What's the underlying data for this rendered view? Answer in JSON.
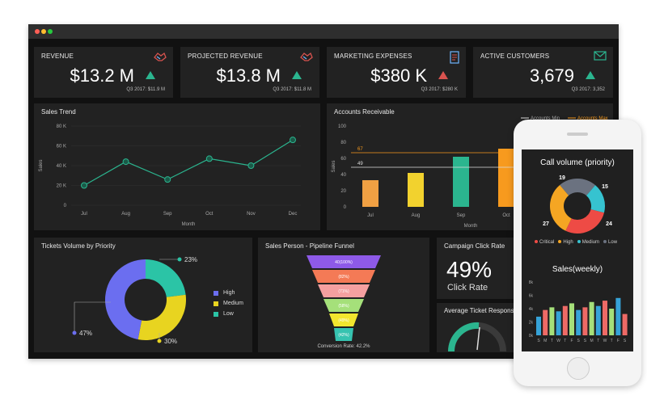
{
  "kpis": [
    {
      "title": "REVENUE",
      "value": "$13.2 M",
      "sub": "Q3 2017: $11.9 M",
      "trend": "up",
      "icon": "handshake-icon"
    },
    {
      "title": "PROJECTED REVENUE",
      "value": "$13.8 M",
      "sub": "Q3 2017: $11.8 M",
      "trend": "up",
      "icon": "handshake-icon"
    },
    {
      "title": "MARKETING EXPENSES",
      "value": "$380 K",
      "sub": "Q3 2017: $280 K",
      "trend": "up-red",
      "icon": "receipt-icon"
    },
    {
      "title": "ACTIVE CUSTOMERS",
      "value": "3,679",
      "sub": "Q3 2017: 3,352",
      "trend": "up",
      "icon": "envelope-icon"
    }
  ],
  "colors": {
    "up": "#2bb58f",
    "upRed": "#d9534f",
    "accentGreen": "#2bb58f",
    "bg": "#111111",
    "panel": "#222222"
  },
  "sales_trend": {
    "title": "Sales Trend",
    "ylabel": "Sales",
    "xlabel": "Month",
    "yticks": [
      "80 K",
      "60 K",
      "40 K",
      "20 K",
      "0"
    ],
    "chart_data": {
      "type": "line",
      "categories": [
        "Jul",
        "Aug",
        "Sep",
        "Oct",
        "Nov",
        "Dec"
      ],
      "values": [
        20000,
        44000,
        26000,
        47000,
        40000,
        66000
      ],
      "ylim": [
        0,
        80000
      ]
    }
  },
  "accounts_receivable": {
    "title": "Accounts Receivable",
    "ylabel": "Sales",
    "xlabel": "Month",
    "legend_min": "Accounts Min",
    "legend_max": "Accounts Max",
    "line_max_label": "67",
    "line_min_label": "49",
    "yticks": [
      "100",
      "80",
      "60",
      "40",
      "20",
      "0"
    ],
    "chart_data": {
      "type": "bar",
      "categories": [
        "Jul",
        "Aug",
        "Sep",
        "Oct"
      ],
      "values": [
        33,
        42,
        62,
        72
      ],
      "colors": [
        "#f0a043",
        "#f2d22e",
        "#2bb58f",
        "#f79a1e"
      ],
      "ylim": [
        0,
        100
      ],
      "max_line": 67,
      "min_line": 49
    }
  },
  "tickets": {
    "title": "Tickets Volume by Priority",
    "legend": [
      "High",
      "Medium",
      "Low"
    ],
    "labels": [
      "23%",
      "47%",
      "30%"
    ],
    "chart_data": {
      "type": "pie",
      "slices": [
        {
          "label": "High",
          "value": 47,
          "color": "#6b6ef0"
        },
        {
          "label": "Medium",
          "value": 30,
          "color": "#e8d420"
        },
        {
          "label": "Low",
          "value": 23,
          "color": "#2bc4a6"
        }
      ]
    }
  },
  "funnel": {
    "title": "Sales Person - Pipeline Funnel",
    "stages": [
      "40(100%)",
      "(82%)",
      "(71%)",
      "(58%)",
      "(49%)",
      "(42%)"
    ],
    "footer": "Conversion Rate: 42.2%",
    "colors": [
      "#8e5ae8",
      "#f47a56",
      "#f5a0a0",
      "#a5e07a",
      "#f2e62e",
      "#36c3b0"
    ]
  },
  "campaign": {
    "title": "Campaign Click Rate",
    "value": "49%",
    "label": "Click Rate"
  },
  "avg_ticket": {
    "title": "Average Ticket Response"
  },
  "phone": {
    "call_title": "Call volume (priority)",
    "call_labels": [
      "19",
      "15",
      "27",
      "24"
    ],
    "call_legend": [
      "Critical",
      "High",
      "Medium",
      "Low"
    ],
    "call_chart": {
      "type": "pie",
      "slices": [
        {
          "label": "Low",
          "value": 19,
          "color": "#6b7280"
        },
        {
          "label": "Medium",
          "value": 15,
          "color": "#36c3d0"
        },
        {
          "label": "Critical",
          "value": 24,
          "color": "#ee4b45"
        },
        {
          "label": "High",
          "value": 27,
          "color": "#f5a623"
        }
      ]
    },
    "sales_title": "Sales(weekly)",
    "sales_yticks": [
      "8k",
      "6k",
      "4k",
      "2k",
      "0k"
    ],
    "sales_days": [
      "S",
      "M",
      "T",
      "W",
      "T",
      "F",
      "S",
      "S",
      "M",
      "T",
      "W",
      "T",
      "F",
      "S"
    ],
    "sales_chart": {
      "type": "bar",
      "values": [
        2.8,
        3.8,
        4.2,
        3.6,
        4.4,
        4.8,
        3.8,
        4.2,
        5.0,
        4.4,
        5.2,
        4.0,
        5.6,
        3.2
      ],
      "colors": [
        "#36a3d8",
        "#ee6a66",
        "#a5e07a"
      ],
      "ylim": [
        0,
        8
      ]
    }
  }
}
